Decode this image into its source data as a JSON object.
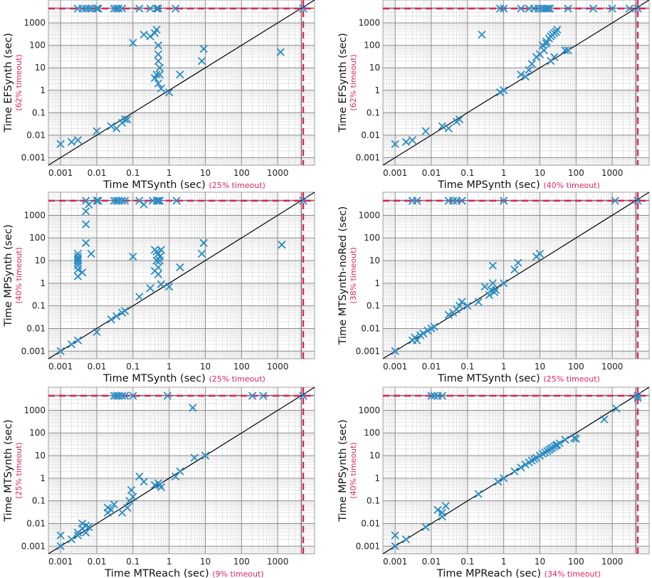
{
  "colors": {
    "marker": "#2b8cc4",
    "timeout": "#e0245e",
    "grid_major": "#8c8c8c",
    "grid_minor": "#e3e3e3",
    "diagonal": "#000000"
  },
  "chart_data": [
    {
      "type": "scatter",
      "xlabel": "Time MTSynth (sec)",
      "xtimeout": "(25% timeout)",
      "ylabel": "Time EFSynth (sec)",
      "ytimeout": "(62% timeout)",
      "xlim": [
        0.0005,
        9000
      ],
      "ylim": [
        0.0005,
        9000
      ],
      "ticks": [
        "0.001",
        "0.01",
        "0.1",
        "1",
        "10",
        "100",
        "1000"
      ],
      "scale": "log",
      "grid": true,
      "diagonal": true,
      "points": [
        [
          0.001,
          0.004
        ],
        [
          0.002,
          0.005
        ],
        [
          0.003,
          0.006
        ],
        [
          0.01,
          0.015
        ],
        [
          0.025,
          0.025
        ],
        [
          0.035,
          0.02
        ],
        [
          0.05,
          0.035
        ],
        [
          0.06,
          0.05
        ],
        [
          0.07,
          0.05
        ],
        [
          0.1,
          130
        ],
        [
          0.2,
          300
        ],
        [
          0.3,
          250
        ],
        [
          0.4,
          350
        ],
        [
          0.45,
          500
        ],
        [
          0.5,
          100
        ],
        [
          0.5,
          40
        ],
        [
          0.5,
          20
        ],
        [
          0.55,
          10
        ],
        [
          0.4,
          3.5
        ],
        [
          0.45,
          5
        ],
        [
          0.55,
          5
        ],
        [
          0.6,
          1.2
        ],
        [
          0.5,
          2
        ],
        [
          1,
          0.8
        ],
        [
          2,
          5
        ],
        [
          8,
          20
        ],
        [
          9,
          70
        ],
        [
          1200,
          50
        ],
        [
          0.003,
          "TO"
        ],
        [
          0.004,
          "TO"
        ],
        [
          0.005,
          "TO"
        ],
        [
          0.006,
          "TO"
        ],
        [
          0.007,
          "TO"
        ],
        [
          0.01,
          "TO"
        ],
        [
          0.011,
          "TO"
        ],
        [
          0.03,
          "TO"
        ],
        [
          0.035,
          "TO"
        ],
        [
          0.04,
          "TO"
        ],
        [
          0.05,
          "TO"
        ],
        [
          0.15,
          "TO"
        ],
        [
          0.3,
          "TO"
        ],
        [
          0.45,
          "TO"
        ],
        [
          0.5,
          "TO"
        ],
        [
          1.5,
          "TO"
        ],
        [
          "TO",
          "TO"
        ]
      ]
    },
    {
      "type": "scatter",
      "xlabel": "Time MPSynth (sec)",
      "xtimeout": "(40% timeout)",
      "ylabel": "Time EFSynth (sec)",
      "ytimeout": "(62% timeout)",
      "xlim": [
        0.0005,
        9000
      ],
      "ylim": [
        0.0005,
        9000
      ],
      "ticks": [
        "0.001",
        "0.01",
        "0.1",
        "1",
        "10",
        "100",
        "1000"
      ],
      "scale": "log",
      "grid": true,
      "diagonal": true,
      "points": [
        [
          0.001,
          0.004
        ],
        [
          0.002,
          0.005
        ],
        [
          0.003,
          0.006
        ],
        [
          0.007,
          0.015
        ],
        [
          0.02,
          0.025
        ],
        [
          0.03,
          0.02
        ],
        [
          0.05,
          0.04
        ],
        [
          0.06,
          0.05
        ],
        [
          0.8,
          0.8
        ],
        [
          1,
          1
        ],
        [
          3,
          5
        ],
        [
          4,
          4
        ],
        [
          5,
          8
        ],
        [
          6,
          15
        ],
        [
          8,
          30
        ],
        [
          10,
          40
        ],
        [
          12,
          100
        ],
        [
          13,
          60
        ],
        [
          15,
          150
        ],
        [
          15,
          120
        ],
        [
          18,
          200
        ],
        [
          20,
          250
        ],
        [
          22,
          300
        ],
        [
          25,
          350
        ],
        [
          28,
          400
        ],
        [
          30,
          500
        ],
        [
          20,
          20
        ],
        [
          25,
          30
        ],
        [
          50,
          60
        ],
        [
          60,
          60
        ],
        [
          0.25,
          300
        ],
        [
          0.8,
          "TO"
        ],
        [
          1,
          "TO"
        ],
        [
          3,
          "TO"
        ],
        [
          5,
          "TO"
        ],
        [
          7,
          "TO"
        ],
        [
          9,
          "TO"
        ],
        [
          11,
          "TO"
        ],
        [
          13,
          "TO"
        ],
        [
          15,
          "TO"
        ],
        [
          17,
          "TO"
        ],
        [
          19,
          "TO"
        ],
        [
          60,
          "TO"
        ],
        [
          300,
          "TO"
        ],
        [
          1000,
          "TO"
        ],
        [
          3000,
          "TO"
        ],
        [
          "TO",
          "TO"
        ]
      ]
    },
    {
      "type": "scatter",
      "xlabel": "Time MTSynth (sec)",
      "xtimeout": "(25% timeout)",
      "ylabel": "Time MPSynth (sec)",
      "ytimeout": "(40% timeout)",
      "xlim": [
        0.0005,
        9000
      ],
      "ylim": [
        0.0005,
        9000
      ],
      "ticks": [
        "0.001",
        "0.01",
        "0.1",
        "1",
        "10",
        "100",
        "1000"
      ],
      "scale": "log",
      "grid": true,
      "diagonal": true,
      "points": [
        [
          0.001,
          0.001
        ],
        [
          0.002,
          0.002
        ],
        [
          0.003,
          0.003
        ],
        [
          0.003,
          20
        ],
        [
          0.003,
          15
        ],
        [
          0.003,
          12
        ],
        [
          0.003,
          10
        ],
        [
          0.003,
          8
        ],
        [
          0.003,
          6
        ],
        [
          0.003,
          4
        ],
        [
          0.003,
          2
        ],
        [
          0.004,
          3
        ],
        [
          0.005,
          400
        ],
        [
          0.005,
          1500
        ],
        [
          0.006,
          3000
        ],
        [
          0.005,
          60
        ],
        [
          0.007,
          20
        ],
        [
          0.01,
          0.007
        ],
        [
          0.025,
          0.025
        ],
        [
          0.035,
          0.035
        ],
        [
          0.05,
          0.05
        ],
        [
          0.06,
          0.06
        ],
        [
          0.1,
          15
        ],
        [
          0.15,
          0.25
        ],
        [
          0.2,
          3000
        ],
        [
          0.3,
          0.6
        ],
        [
          0.4,
          30
        ],
        [
          0.45,
          25
        ],
        [
          0.5,
          20
        ],
        [
          0.55,
          15
        ],
        [
          0.6,
          30
        ],
        [
          0.45,
          10
        ],
        [
          0.5,
          5
        ],
        [
          0.4,
          3.5
        ],
        [
          0.5,
          2.5
        ],
        [
          0.55,
          10
        ],
        [
          0.6,
          0.9
        ],
        [
          1,
          0.7
        ],
        [
          2,
          5
        ],
        [
          8,
          20
        ],
        [
          9,
          60
        ],
        [
          1300,
          50
        ],
        [
          0.005,
          "TO"
        ],
        [
          0.01,
          "TO"
        ],
        [
          0.011,
          "TO"
        ],
        [
          0.03,
          "TO"
        ],
        [
          0.035,
          "TO"
        ],
        [
          0.04,
          "TO"
        ],
        [
          0.05,
          "TO"
        ],
        [
          0.06,
          "TO"
        ],
        [
          0.15,
          "TO"
        ],
        [
          0.35,
          "TO"
        ],
        [
          0.45,
          "TO"
        ],
        [
          0.5,
          "TO"
        ],
        [
          0.55,
          "TO"
        ],
        [
          1.6,
          "TO"
        ],
        [
          "TO",
          "TO"
        ]
      ]
    },
    {
      "type": "scatter",
      "xlabel": "Time MTSynth (sec)",
      "xtimeout": "(25% timeout)",
      "ylabel": "Time MTSynth-noRed (sec)",
      "ytimeout": "(38% timeout)",
      "xlim": [
        0.0005,
        9000
      ],
      "ylim": [
        0.0005,
        9000
      ],
      "ticks": [
        "0.001",
        "0.01",
        "0.1",
        "1",
        "10",
        "100",
        "1000"
      ],
      "scale": "log",
      "grid": true,
      "diagonal": true,
      "points": [
        [
          0.001,
          0.001
        ],
        [
          0.003,
          0.003
        ],
        [
          0.0035,
          0.004
        ],
        [
          0.004,
          0.003
        ],
        [
          0.005,
          0.005
        ],
        [
          0.006,
          0.006
        ],
        [
          0.008,
          0.008
        ],
        [
          0.01,
          0.01
        ],
        [
          0.012,
          0.012
        ],
        [
          0.03,
          0.04
        ],
        [
          0.04,
          0.05
        ],
        [
          0.05,
          0.07
        ],
        [
          0.06,
          0.1
        ],
        [
          0.07,
          0.15
        ],
        [
          0.1,
          0.1
        ],
        [
          0.2,
          0.15
        ],
        [
          0.3,
          0.7
        ],
        [
          0.4,
          0.3
        ],
        [
          0.45,
          0.5
        ],
        [
          0.5,
          1
        ],
        [
          0.5,
          6
        ],
        [
          0.55,
          0.4
        ],
        [
          0.6,
          0.5
        ],
        [
          1,
          1
        ],
        [
          2,
          4
        ],
        [
          2.5,
          8
        ],
        [
          8,
          15
        ],
        [
          10,
          20
        ],
        [
          0.003,
          "TO"
        ],
        [
          0.004,
          "TO"
        ],
        [
          0.03,
          "TO"
        ],
        [
          0.04,
          "TO"
        ],
        [
          0.05,
          "TO"
        ],
        [
          0.07,
          "TO"
        ],
        [
          1,
          "TO"
        ],
        [
          1200,
          "TO"
        ],
        [
          "TO",
          "TO"
        ]
      ]
    },
    {
      "type": "scatter",
      "xlabel": "Time MTReach (sec)",
      "xtimeout": "(9% timeout)",
      "ylabel": "Time MTSynth",
      "ylabel2": "(sec)",
      "ytimeout": "(25% timeout)",
      "xlim": [
        0.0005,
        9000
      ],
      "ylim": [
        0.0005,
        9000
      ],
      "ticks": [
        "0.001",
        "0.01",
        "0.1",
        "1",
        "10",
        "100",
        "1000"
      ],
      "scale": "log",
      "grid": true,
      "diagonal": true,
      "points": [
        [
          0.001,
          0.001
        ],
        [
          0.001,
          0.003
        ],
        [
          0.002,
          0.002
        ],
        [
          0.003,
          0.003
        ],
        [
          0.003,
          0.004
        ],
        [
          0.004,
          0.01
        ],
        [
          0.004,
          0.006
        ],
        [
          0.005,
          0.004
        ],
        [
          0.005,
          0.008
        ],
        [
          0.006,
          0.007
        ],
        [
          0.02,
          0.03
        ],
        [
          0.02,
          0.05
        ],
        [
          0.025,
          0.04
        ],
        [
          0.03,
          0.07
        ],
        [
          0.05,
          0.03
        ],
        [
          0.07,
          0.05
        ],
        [
          0.08,
          0.1
        ],
        [
          0.09,
          0.3
        ],
        [
          0.1,
          0.15
        ],
        [
          0.15,
          1.2
        ],
        [
          0.2,
          0.7
        ],
        [
          0.4,
          0.5
        ],
        [
          0.5,
          0.6
        ],
        [
          0.55,
          0.5
        ],
        [
          0.6,
          0.4
        ],
        [
          1.5,
          1.2
        ],
        [
          2,
          2
        ],
        [
          4.5,
          1300
        ],
        [
          5,
          8
        ],
        [
          10,
          10
        ],
        [
          0.03,
          "TO"
        ],
        [
          0.035,
          "TO"
        ],
        [
          0.04,
          "TO"
        ],
        [
          0.05,
          "TO"
        ],
        [
          0.06,
          "TO"
        ],
        [
          0.1,
          "TO"
        ],
        [
          0.9,
          "TO"
        ],
        [
          200,
          "TO"
        ],
        [
          400,
          "TO"
        ],
        [
          "TO",
          "TO"
        ]
      ]
    },
    {
      "type": "scatter",
      "xlabel": "Time MPReach (sec)",
      "xtimeout": "(34% timeout)",
      "ylabel": "Time MPSynth (sec)",
      "ytimeout": "(40% timeout)",
      "xlim": [
        0.0005,
        9000
      ],
      "ylim": [
        0.0005,
        9000
      ],
      "ticks": [
        "0.001",
        "0.01",
        "0.1",
        "1",
        "10",
        "100",
        "1000"
      ],
      "scale": "log",
      "grid": true,
      "diagonal": true,
      "points": [
        [
          0.001,
          0.001
        ],
        [
          0.001,
          0.003
        ],
        [
          0.002,
          0.002
        ],
        [
          0.007,
          0.007
        ],
        [
          0.015,
          0.04
        ],
        [
          0.02,
          0.03
        ],
        [
          0.02,
          0.02
        ],
        [
          0.025,
          0.06
        ],
        [
          0.2,
          0.2
        ],
        [
          0.7,
          0.7
        ],
        [
          1,
          1
        ],
        [
          2,
          2
        ],
        [
          3,
          3
        ],
        [
          4,
          4
        ],
        [
          5,
          5
        ],
        [
          6,
          6
        ],
        [
          7,
          7
        ],
        [
          8,
          8
        ],
        [
          10,
          10
        ],
        [
          12,
          12
        ],
        [
          14,
          14
        ],
        [
          16,
          16
        ],
        [
          18,
          18
        ],
        [
          20,
          20
        ],
        [
          22,
          22
        ],
        [
          25,
          25
        ],
        [
          28,
          28
        ],
        [
          30,
          30
        ],
        [
          35,
          35
        ],
        [
          50,
          50
        ],
        [
          90,
          60
        ],
        [
          100,
          55
        ],
        [
          600,
          400
        ],
        [
          1300,
          1200
        ],
        [
          "TO",
          3500
        ],
        [
          0.01,
          "TO"
        ],
        [
          0.012,
          "TO"
        ],
        [
          0.015,
          "TO"
        ],
        [
          0.02,
          "TO"
        ],
        [
          "TO",
          "TO"
        ]
      ]
    }
  ]
}
